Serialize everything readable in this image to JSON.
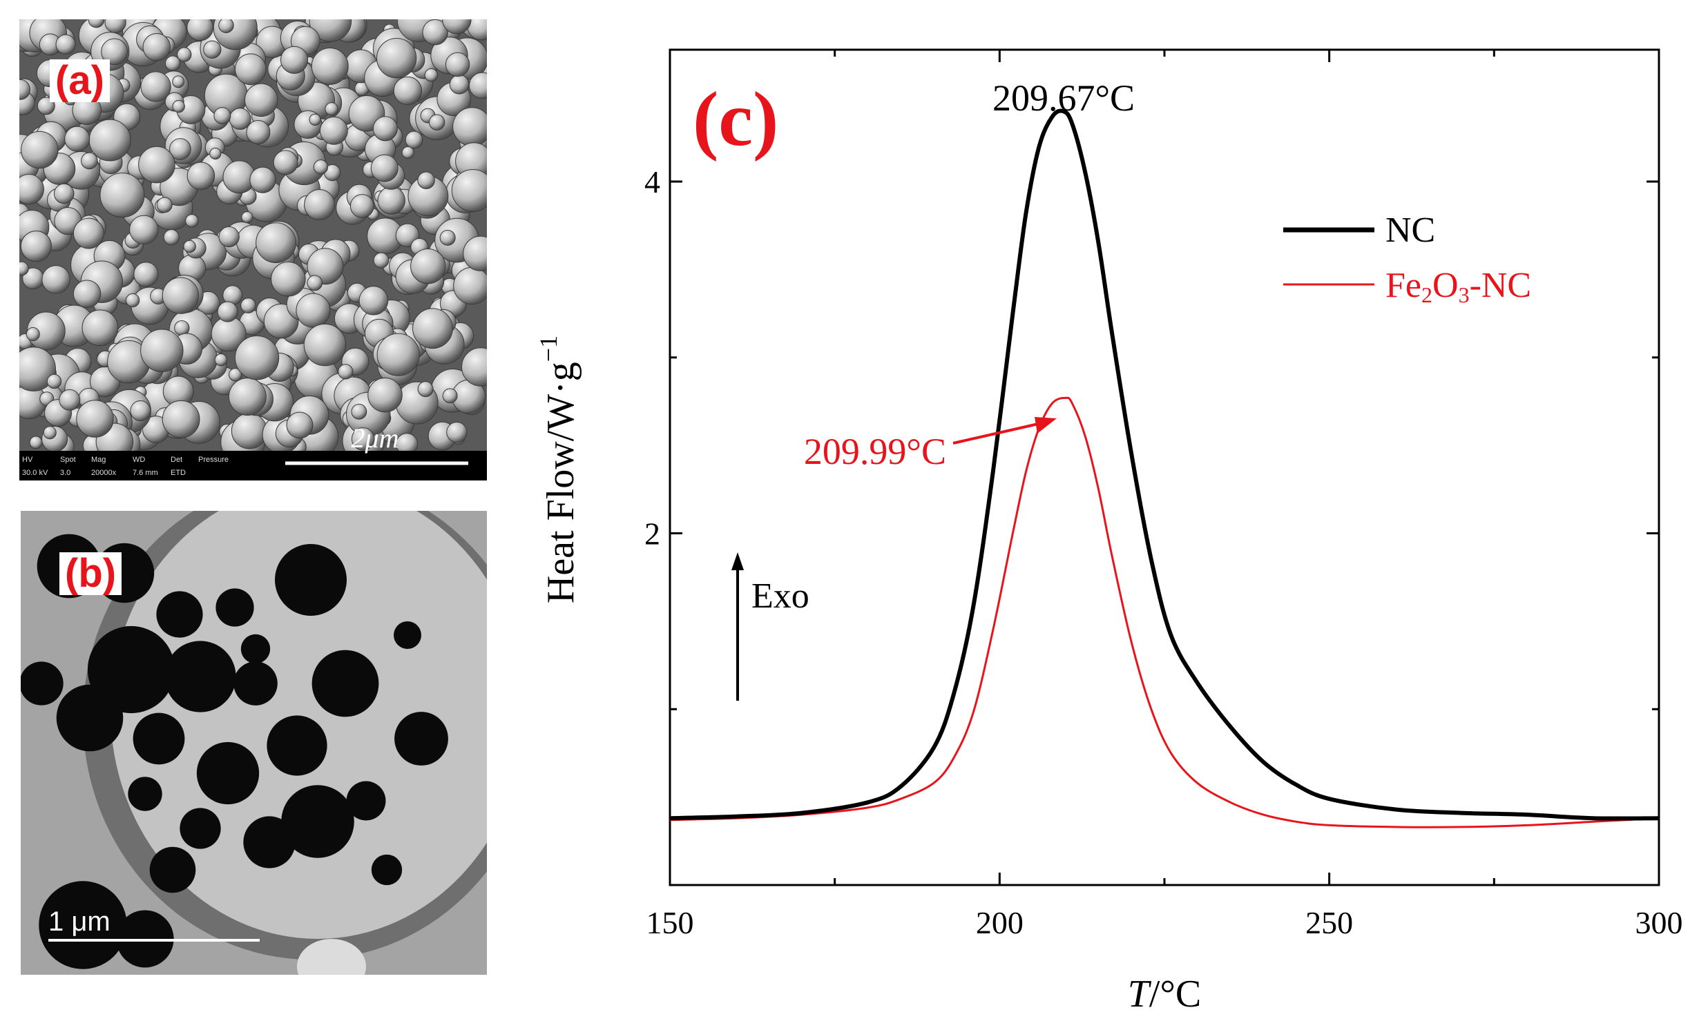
{
  "panels": {
    "a": {
      "label": "(a)",
      "scalebar": "2μm",
      "databar": [
        "HV",
        "Spot",
        "Mag",
        "WD",
        "Det",
        "Pressure",
        "30.0 kV",
        "3.0",
        "20000x",
        "7.6 mm",
        "ETD",
        ""
      ]
    },
    "b": {
      "label": "(b)",
      "scalebar": "1 μm"
    },
    "c": {
      "label": "(c)"
    }
  },
  "colors": {
    "nc": "#000000",
    "fe2o3_nc": "#e8141b",
    "panel_label": "#e8141b"
  },
  "chart_data": {
    "type": "line",
    "xlabel_italic": "T",
    "xlabel_rest": "/°C",
    "ylabel": "Heat Flow/W·g",
    "ylabel_sup": "−1",
    "xlim": [
      150,
      300
    ],
    "ylim": [
      0.0,
      4.75
    ],
    "xticks": [
      150,
      200,
      250,
      300
    ],
    "yticks": [
      2,
      4
    ],
    "legend_position": "top-right",
    "exo_label": "Exo",
    "series": [
      {
        "key": "nc",
        "name": "NC",
        "x": [
          150,
          160,
          170,
          180,
          185,
          190,
          193,
          196,
          199,
          202,
          204,
          206,
          208,
          209.67,
          211,
          213,
          215,
          217,
          220,
          223,
          226,
          230,
          235,
          240,
          245,
          250,
          260,
          270,
          280,
          290,
          300
        ],
        "y": [
          0.38,
          0.39,
          0.41,
          0.47,
          0.56,
          0.78,
          1.08,
          1.58,
          2.35,
          3.25,
          3.82,
          4.2,
          4.37,
          4.4,
          4.33,
          4.05,
          3.65,
          3.15,
          2.45,
          1.85,
          1.42,
          1.15,
          0.9,
          0.7,
          0.57,
          0.49,
          0.43,
          0.41,
          0.4,
          0.38,
          0.38
        ]
      },
      {
        "key": "fe2o3_nc",
        "name": "Fe2O3-NC",
        "x": [
          150,
          160,
          170,
          180,
          185,
          190,
          193,
          196,
          199,
          202,
          204,
          206,
          208,
          209.99,
          211,
          213,
          215,
          217,
          220,
          223,
          226,
          230,
          235,
          240,
          245,
          250,
          260,
          270,
          280,
          290,
          300
        ],
        "y": [
          0.37,
          0.38,
          0.4,
          0.44,
          0.49,
          0.58,
          0.72,
          0.98,
          1.45,
          2.0,
          2.35,
          2.6,
          2.74,
          2.77,
          2.74,
          2.55,
          2.25,
          1.88,
          1.38,
          1.0,
          0.75,
          0.58,
          0.47,
          0.4,
          0.36,
          0.34,
          0.33,
          0.33,
          0.34,
          0.36,
          0.38
        ]
      }
    ],
    "annotations": [
      {
        "key": "nc_peak",
        "text": "209.67°C",
        "x": 209.67,
        "y": 4.4
      },
      {
        "key": "fe_peak",
        "text": "209.99°C",
        "x": 209.99,
        "y": 2.77
      }
    ]
  }
}
